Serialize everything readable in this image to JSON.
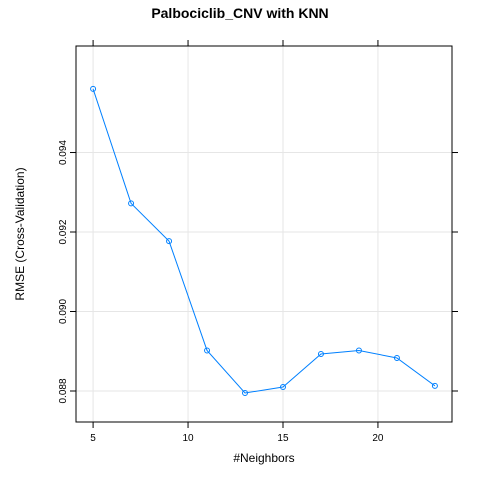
{
  "chart_data": {
    "type": "line",
    "title": "Palbociclib_CNV with KNN",
    "xlabel": "#Neighbors",
    "ylabel": "RMSE (Cross-Validation)",
    "x": [
      5,
      7,
      9,
      11,
      13,
      15,
      17,
      19,
      21,
      23
    ],
    "y": [
      0.0956,
      0.09272,
      0.09177,
      0.08902,
      0.08795,
      0.0881,
      0.08893,
      0.08902,
      0.08883,
      0.08813
    ],
    "xlim": [
      4.1,
      23.9
    ],
    "ylim": [
      0.08722,
      0.09668
    ],
    "xticks": [
      5,
      10,
      15,
      20
    ],
    "yticks": [
      0.088,
      0.09,
      0.092,
      0.094
    ],
    "xtick_labels": [
      "5",
      "10",
      "15",
      "20"
    ],
    "ytick_labels": [
      "0.088",
      "0.090",
      "0.092",
      "0.094"
    ],
    "grid": true,
    "line_color": "#0080ff",
    "marker": "open-circle"
  }
}
